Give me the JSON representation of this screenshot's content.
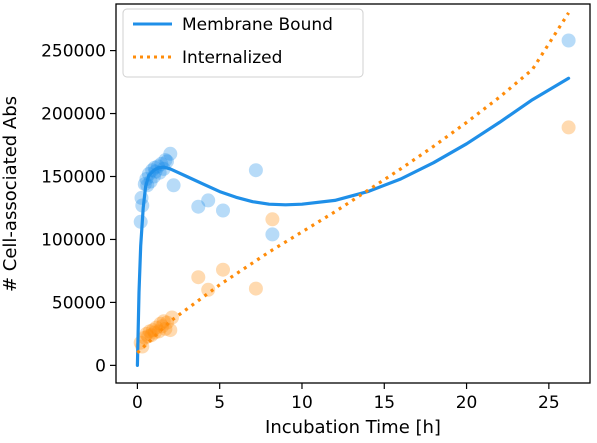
{
  "chart_data": {
    "type": "scatter",
    "title": "",
    "xlabel": "Incubation Time [h]",
    "ylabel": "# Cell-associated Abs",
    "xlim": [
      -1.3,
      27.5
    ],
    "ylim": [
      -14000,
      287000
    ],
    "xticks": [
      0,
      5,
      10,
      15,
      20,
      25
    ],
    "yticks": [
      0,
      50000,
      100000,
      150000,
      200000,
      250000
    ],
    "grid": false,
    "legend_position": "top-left",
    "colors": {
      "membrane": "#1f8fe8",
      "internalized": "#ff8c0a"
    },
    "series": [
      {
        "name": "Membrane Bound",
        "kind": "fit-line",
        "style": "solid",
        "color": "#1f8fe8",
        "x": [
          0,
          0.1,
          0.2,
          0.35,
          0.5,
          0.7,
          1,
          1.3,
          1.6,
          2,
          2.5,
          3,
          4,
          5,
          6,
          7,
          8,
          9,
          10,
          12,
          14,
          16,
          18,
          20,
          22,
          24,
          26.2
        ],
        "y": [
          0,
          58000,
          95000,
          125000,
          142000,
          151000,
          155000,
          157000,
          157500,
          156000,
          153000,
          150000,
          144000,
          138000,
          133500,
          130000,
          128000,
          127500,
          128000,
          131000,
          138000,
          148000,
          161000,
          176000,
          193000,
          211000,
          228000
        ]
      },
      {
        "name": "Internalized",
        "kind": "fit-line",
        "style": "dotted",
        "color": "#ff8c0a",
        "x": [
          0,
          2,
          5,
          8,
          10,
          12,
          14,
          16,
          18,
          20,
          22,
          24,
          26.2
        ],
        "y": [
          10000,
          35000,
          64000,
          90000,
          106000,
          122000,
          139000,
          156000,
          174000,
          193000,
          213000,
          235000,
          280000
        ]
      },
      {
        "name": "Membrane Bound data",
        "kind": "points",
        "color": "#1f8fe8",
        "x": [
          0.2,
          0.25,
          0.3,
          0.45,
          0.55,
          0.6,
          0.7,
          0.8,
          0.9,
          1.0,
          1.05,
          1.1,
          1.25,
          1.35,
          1.45,
          1.6,
          1.7,
          1.8,
          2.0,
          2.2,
          3.7,
          4.3,
          5.2,
          7.2,
          8.2,
          26.2
        ],
        "y": [
          114000,
          133000,
          127000,
          144000,
          148000,
          143000,
          152000,
          146000,
          155000,
          150000,
          157000,
          154000,
          158000,
          153000,
          160000,
          156000,
          163000,
          162000,
          168000,
          143000,
          126000,
          131000,
          123000,
          155000,
          104000,
          258000
        ]
      },
      {
        "name": "Internalized data",
        "kind": "points",
        "color": "#ff8c0a",
        "x": [
          0.2,
          0.3,
          0.45,
          0.55,
          0.65,
          0.75,
          0.85,
          0.95,
          1.05,
          1.15,
          1.3,
          1.4,
          1.5,
          1.6,
          1.7,
          1.8,
          2.0,
          2.1,
          3.7,
          4.3,
          5.2,
          7.2,
          8.2,
          26.2
        ],
        "y": [
          18000,
          15000,
          22000,
          25000,
          23000,
          27000,
          24000,
          28000,
          26000,
          30000,
          27000,
          33000,
          31000,
          35000,
          29000,
          34000,
          28000,
          38000,
          70000,
          60000,
          76000,
          61000,
          116000,
          189000
        ]
      }
    ]
  }
}
